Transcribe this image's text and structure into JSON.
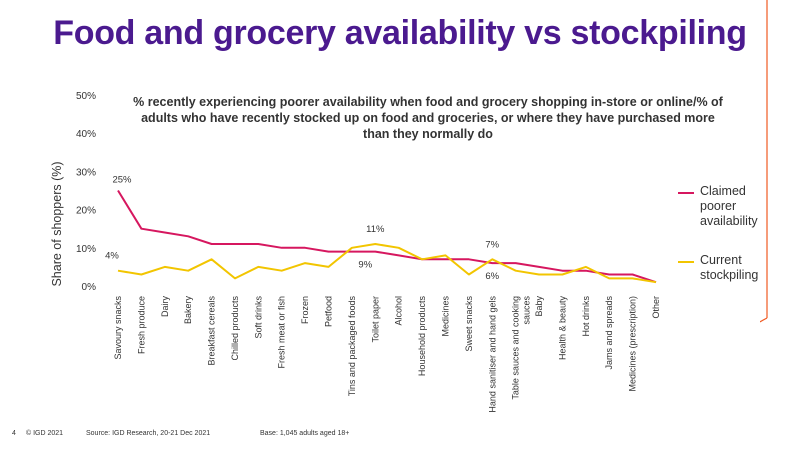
{
  "page": {
    "title": "Food and grocery availability vs stockpiling",
    "footer": {
      "page_number": "4",
      "copyright": "© IGD 2021",
      "source": "Source: IGD Research, 20-21 Dec 2021",
      "base": "Base: 1,045 adults aged 18+"
    }
  },
  "colors": {
    "title": "#4b1a8f",
    "claimed": "#d6175f",
    "stockpiling": "#f2c500",
    "accent": "#f05a22"
  },
  "chart_data": {
    "type": "line",
    "title": "% recently experiencing poorer availability when food and grocery shopping in-store or online/% of adults who have recently stocked up on food and groceries, or where they have purchased more than they normally do",
    "ylabel": "Share of shoppers (%)",
    "xlabel": "",
    "ylim": [
      0,
      50
    ],
    "yticks": [
      "0%",
      "10%",
      "20%",
      "30%",
      "40%",
      "50%"
    ],
    "grid": false,
    "legend_position": "right",
    "categories": [
      "Savoury snacks",
      "Fresh produce",
      "Dairy",
      "Bakery",
      "Breakfast cereals",
      "Chilled products",
      "Soft drinks",
      "Fresh meat or fish",
      "Frozen",
      "Petfood",
      "Tins and packaged foods",
      "Toilet paper",
      "Alcohol",
      "Household products",
      "Medicines",
      "Sweet snacks",
      "Hand sanitiser and hand gels",
      "Table sauces and cooking sauces",
      "Baby",
      "Health & beauty",
      "Hot drinks",
      "Jams and spreads",
      "Medicines (prescription)",
      "Other"
    ],
    "series": [
      {
        "name": "Claimed poorer availability",
        "values": [
          25,
          15,
          14,
          13,
          11,
          11,
          11,
          10,
          10,
          9,
          9,
          9,
          8,
          7,
          7,
          7,
          6,
          6,
          5,
          4,
          4,
          3,
          3,
          1
        ]
      },
      {
        "name": "Current stockpiling",
        "values": [
          4,
          3,
          5,
          4,
          7,
          2,
          5,
          4,
          6,
          5,
          10,
          11,
          10,
          7,
          8,
          3,
          7,
          4,
          3,
          3,
          5,
          2,
          2,
          1
        ]
      }
    ],
    "data_labels": [
      {
        "series": 0,
        "index": 0,
        "text": "25%"
      },
      {
        "series": 1,
        "index": 0,
        "text": "4%"
      },
      {
        "series": 1,
        "index": 11,
        "text": "11%"
      },
      {
        "series": 0,
        "index": 11,
        "text": "9%"
      },
      {
        "series": 1,
        "index": 16,
        "text": "7%"
      },
      {
        "series": 0,
        "index": 16,
        "text": "6%"
      }
    ]
  }
}
